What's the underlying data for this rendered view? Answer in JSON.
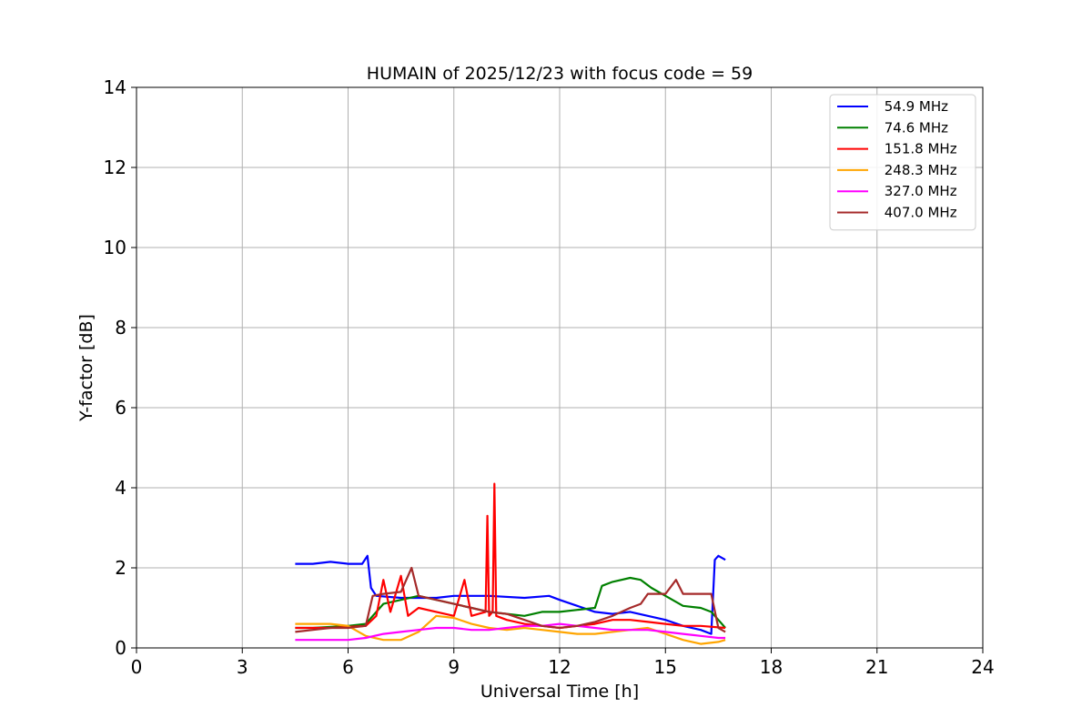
{
  "chart_data": {
    "type": "line",
    "title": "HUMAIN of 2025/12/23 with focus code = 59",
    "xlabel": "Universal Time [h]",
    "ylabel": "Y-factor [dB]",
    "xlim": [
      0,
      24
    ],
    "ylim": [
      0,
      14
    ],
    "xticks": [
      "0",
      "3",
      "6",
      "9",
      "12",
      "15",
      "18",
      "21",
      "24"
    ],
    "yticks": [
      "0",
      "2",
      "4",
      "6",
      "8",
      "10",
      "12",
      "14"
    ],
    "grid": true,
    "legend_position": "top-right",
    "series": [
      {
        "name": " 54.9 MHz",
        "color": "#0000ff",
        "points": [
          [
            4.5,
            2.1
          ],
          [
            5.0,
            2.1
          ],
          [
            5.5,
            2.15
          ],
          [
            6.0,
            2.1
          ],
          [
            6.4,
            2.1
          ],
          [
            6.55,
            2.3
          ],
          [
            6.65,
            1.5
          ],
          [
            6.8,
            1.3
          ],
          [
            7.5,
            1.25
          ],
          [
            8.5,
            1.25
          ],
          [
            9.0,
            1.3
          ],
          [
            10.0,
            1.3
          ],
          [
            11.0,
            1.25
          ],
          [
            11.7,
            1.3
          ],
          [
            12.0,
            1.2
          ],
          [
            12.5,
            1.05
          ],
          [
            13.0,
            0.9
          ],
          [
            13.5,
            0.85
          ],
          [
            14.0,
            0.9
          ],
          [
            15.0,
            0.7
          ],
          [
            15.5,
            0.55
          ],
          [
            16.0,
            0.45
          ],
          [
            16.3,
            0.35
          ],
          [
            16.4,
            2.2
          ],
          [
            16.5,
            2.3
          ],
          [
            16.7,
            2.2
          ]
        ]
      },
      {
        "name": " 74.6 MHz",
        "color": "#008000",
        "points": [
          [
            4.5,
            0.5
          ],
          [
            5.0,
            0.5
          ],
          [
            6.0,
            0.55
          ],
          [
            6.5,
            0.6
          ],
          [
            7.0,
            1.1
          ],
          [
            7.5,
            1.2
          ],
          [
            8.0,
            1.3
          ],
          [
            8.5,
            1.2
          ],
          [
            9.0,
            1.1
          ],
          [
            9.5,
            1.0
          ],
          [
            10.0,
            0.9
          ],
          [
            10.5,
            0.85
          ],
          [
            11.0,
            0.8
          ],
          [
            11.5,
            0.9
          ],
          [
            12.0,
            0.9
          ],
          [
            12.5,
            0.95
          ],
          [
            13.0,
            1.0
          ],
          [
            13.2,
            1.55
          ],
          [
            13.5,
            1.65
          ],
          [
            14.0,
            1.75
          ],
          [
            14.3,
            1.7
          ],
          [
            14.6,
            1.5
          ],
          [
            15.0,
            1.3
          ],
          [
            15.5,
            1.05
          ],
          [
            16.0,
            1.0
          ],
          [
            16.3,
            0.9
          ],
          [
            16.5,
            0.7
          ],
          [
            16.7,
            0.5
          ]
        ]
      },
      {
        "name": " 151.8 MHz",
        "color": "#ff0000",
        "points": [
          [
            4.5,
            0.5
          ],
          [
            5.5,
            0.5
          ],
          [
            6.5,
            0.55
          ],
          [
            6.8,
            0.8
          ],
          [
            7.0,
            1.7
          ],
          [
            7.2,
            0.9
          ],
          [
            7.5,
            1.8
          ],
          [
            7.7,
            0.8
          ],
          [
            8.0,
            1.0
          ],
          [
            8.5,
            0.9
          ],
          [
            9.0,
            0.8
          ],
          [
            9.3,
            1.7
          ],
          [
            9.5,
            0.8
          ],
          [
            9.9,
            0.9
          ],
          [
            9.95,
            3.3
          ],
          [
            10.0,
            0.8
          ],
          [
            10.1,
            0.9
          ],
          [
            10.15,
            4.1
          ],
          [
            10.2,
            0.8
          ],
          [
            10.5,
            0.7
          ],
          [
            11.0,
            0.6
          ],
          [
            11.5,
            0.55
          ],
          [
            12.0,
            0.5
          ],
          [
            12.5,
            0.55
          ],
          [
            13.0,
            0.6
          ],
          [
            13.5,
            0.7
          ],
          [
            14.0,
            0.7
          ],
          [
            14.5,
            0.65
          ],
          [
            15.0,
            0.6
          ],
          [
            15.5,
            0.55
          ],
          [
            16.0,
            0.55
          ],
          [
            16.7,
            0.5
          ]
        ]
      },
      {
        "name": " 248.3 MHz",
        "color": "#ffa500",
        "points": [
          [
            4.5,
            0.6
          ],
          [
            5.5,
            0.6
          ],
          [
            6.0,
            0.55
          ],
          [
            6.5,
            0.3
          ],
          [
            7.0,
            0.2
          ],
          [
            7.5,
            0.2
          ],
          [
            8.0,
            0.4
          ],
          [
            8.5,
            0.8
          ],
          [
            9.0,
            0.75
          ],
          [
            9.5,
            0.6
          ],
          [
            10.0,
            0.5
          ],
          [
            10.5,
            0.45
          ],
          [
            11.0,
            0.5
          ],
          [
            11.5,
            0.45
          ],
          [
            12.0,
            0.4
          ],
          [
            12.5,
            0.35
          ],
          [
            13.0,
            0.35
          ],
          [
            13.5,
            0.4
          ],
          [
            14.0,
            0.45
          ],
          [
            14.5,
            0.5
          ],
          [
            15.0,
            0.35
          ],
          [
            15.5,
            0.2
          ],
          [
            16.0,
            0.1
          ],
          [
            16.5,
            0.15
          ],
          [
            16.7,
            0.2
          ]
        ]
      },
      {
        "name": " 327.0 MHz",
        "color": "#ff00ff",
        "points": [
          [
            4.5,
            0.2
          ],
          [
            5.0,
            0.2
          ],
          [
            5.5,
            0.2
          ],
          [
            6.0,
            0.2
          ],
          [
            6.5,
            0.25
          ],
          [
            7.0,
            0.35
          ],
          [
            7.5,
            0.4
          ],
          [
            8.0,
            0.45
          ],
          [
            8.5,
            0.5
          ],
          [
            9.0,
            0.5
          ],
          [
            9.5,
            0.45
          ],
          [
            10.0,
            0.45
          ],
          [
            10.5,
            0.5
          ],
          [
            11.0,
            0.55
          ],
          [
            11.5,
            0.55
          ],
          [
            12.0,
            0.6
          ],
          [
            12.5,
            0.55
          ],
          [
            13.0,
            0.5
          ],
          [
            13.5,
            0.45
          ],
          [
            14.0,
            0.45
          ],
          [
            14.5,
            0.45
          ],
          [
            15.0,
            0.4
          ],
          [
            15.5,
            0.35
          ],
          [
            16.0,
            0.3
          ],
          [
            16.5,
            0.25
          ],
          [
            16.7,
            0.25
          ]
        ]
      },
      {
        "name": " 407.0 MHz",
        "color": "#a52a2a",
        "points": [
          [
            4.5,
            0.4
          ],
          [
            5.0,
            0.45
          ],
          [
            5.5,
            0.5
          ],
          [
            6.0,
            0.5
          ],
          [
            6.5,
            0.55
          ],
          [
            6.7,
            1.3
          ],
          [
            7.0,
            1.35
          ],
          [
            7.5,
            1.4
          ],
          [
            7.8,
            2.0
          ],
          [
            8.0,
            1.3
          ],
          [
            8.5,
            1.2
          ],
          [
            9.0,
            1.1
          ],
          [
            9.5,
            1.0
          ],
          [
            10.0,
            0.9
          ],
          [
            10.5,
            0.85
          ],
          [
            11.0,
            0.7
          ],
          [
            11.5,
            0.55
          ],
          [
            12.0,
            0.5
          ],
          [
            12.5,
            0.55
          ],
          [
            13.0,
            0.65
          ],
          [
            13.5,
            0.8
          ],
          [
            14.0,
            1.0
          ],
          [
            14.3,
            1.1
          ],
          [
            14.5,
            1.35
          ],
          [
            15.0,
            1.35
          ],
          [
            15.3,
            1.7
          ],
          [
            15.5,
            1.35
          ],
          [
            16.0,
            1.35
          ],
          [
            16.3,
            1.35
          ],
          [
            16.5,
            0.5
          ],
          [
            16.7,
            0.4
          ]
        ]
      }
    ]
  }
}
